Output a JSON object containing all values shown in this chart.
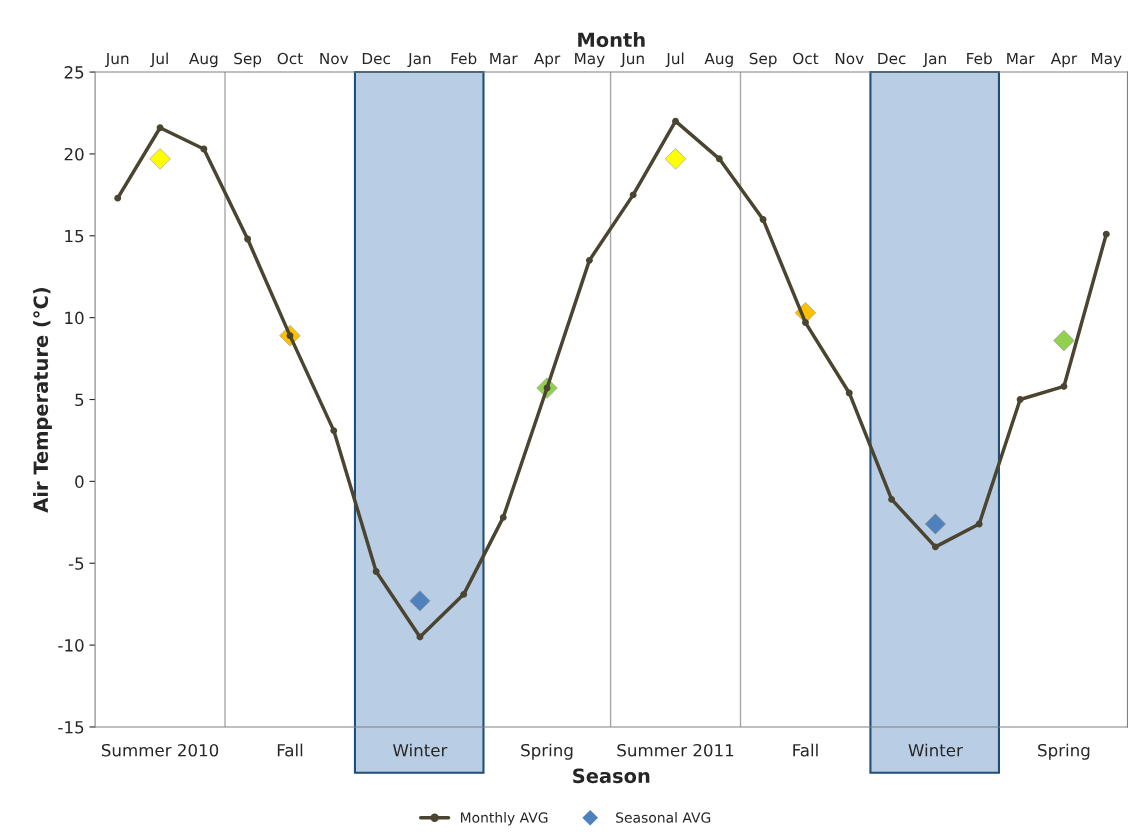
{
  "chart_data": {
    "type": "line",
    "xlabel": "Season",
    "x2label": "Month",
    "ylabel": "Air Temperature (°C)",
    "x": [
      "2010-06",
      "2010-07",
      "2010-08",
      "2010-09",
      "2010-10",
      "2010-11",
      "2010-12",
      "2011-01",
      "2011-02",
      "2011-03",
      "2011-04",
      "2011-05",
      "2011-06",
      "2011-07",
      "2011-08",
      "2011-09",
      "2011-10",
      "2011-11",
      "2011-12",
      "2012-01",
      "2012-02",
      "2012-03",
      "2012-04",
      "2012-05"
    ],
    "series": [
      {
        "name": "Monthly AVG",
        "color": "#4a4530",
        "marker": "circle",
        "line_style": "solid",
        "values": [
          17.3,
          21.6,
          20.3,
          14.8,
          8.9,
          3.1,
          -5.5,
          -9.5,
          -6.9,
          -2.2,
          5.7,
          13.5,
          17.5,
          22.0,
          19.7,
          16.0,
          9.7,
          5.4,
          -1.1,
          -4.0,
          -2.6,
          5.0,
          5.8,
          15.1
        ]
      },
      {
        "name": "Seasonal AVG",
        "type": "scatter",
        "marker": "diamond",
        "color": "#4f81bd",
        "x": [
          "2010-07",
          "2010-10",
          "2011-01",
          "2011-04",
          "2011-07",
          "2011-10",
          "2012-01",
          "2012-04"
        ],
        "colors": [
          "#ffff00",
          "#ffc000",
          "#4f81bd",
          "#92d050",
          "#ffff00",
          "#ffc000",
          "#4f81bd",
          "#92d050"
        ],
        "values": [
          19.7,
          8.9,
          -7.3,
          5.7,
          19.7,
          10.3,
          -2.6,
          8.6
        ]
      }
    ],
    "xlim": [
      "2010-05-16",
      "2012-05-16"
    ],
    "xticks": [
      {
        "value": "2010-07",
        "label": "Summer 2010"
      },
      {
        "value": "2010-10",
        "label": "Fall"
      },
      {
        "value": "2011-01",
        "label": "Winter"
      },
      {
        "value": "2011-04",
        "label": "Spring"
      },
      {
        "value": "2011-07",
        "label": "Summer 2011"
      },
      {
        "value": "2011-10",
        "label": "Fall"
      },
      {
        "value": "2012-01",
        "label": "Winter"
      },
      {
        "value": "2012-04",
        "label": "Spring"
      }
    ],
    "x2lim": [
      "2010-05-16",
      "2012-05-16"
    ],
    "x2ticks": [
      {
        "value": "2010-06",
        "label": "Jun"
      },
      {
        "value": "2010-07",
        "label": "Jul"
      },
      {
        "value": "2010-08",
        "label": "Aug"
      },
      {
        "value": "2010-09",
        "label": "Sep"
      },
      {
        "value": "2010-10",
        "label": "Oct"
      },
      {
        "value": "2010-11",
        "label": "Nov"
      },
      {
        "value": "2010-12",
        "label": "Dec"
      },
      {
        "value": "2011-01",
        "label": "Jan"
      },
      {
        "value": "2011-02",
        "label": "Feb"
      },
      {
        "value": "2011-03",
        "label": "Mar"
      },
      {
        "value": "2011-04",
        "label": "Apr"
      },
      {
        "value": "2011-05",
        "label": "May"
      },
      {
        "value": "2011-06",
        "label": "Jun"
      },
      {
        "value": "2011-07",
        "label": "Jul"
      },
      {
        "value": "2011-08",
        "label": "Aug"
      },
      {
        "value": "2011-09",
        "label": "Sep"
      },
      {
        "value": "2011-10",
        "label": "Oct"
      },
      {
        "value": "2011-11",
        "label": "Nov"
      },
      {
        "value": "2011-12",
        "label": "Dec"
      },
      {
        "value": "2012-01",
        "label": "Jan"
      },
      {
        "value": "2012-02",
        "label": "Feb"
      },
      {
        "value": "2012-03",
        "label": "Mar"
      },
      {
        "value": "2012-04",
        "label": "Apr"
      },
      {
        "value": "2012-05",
        "label": "May"
      }
    ],
    "ylim": [
      -15,
      25
    ],
    "yticks": [
      -15,
      -10,
      -5,
      0,
      5,
      10,
      15,
      20,
      25
    ],
    "grid": false,
    "legend": "bottom",
    "ref_lines": [
      {
        "axis": "x",
        "value": "2010-08-16",
        "color": "#a6a6a6"
      },
      {
        "axis": "x",
        "value": "2011-05-16",
        "color": "#a6a6a6"
      },
      {
        "axis": "x",
        "value": "2011-08-16",
        "color": "#a6a6a6"
      }
    ],
    "bands": [
      {
        "axis": "x",
        "from": "2010-11-16",
        "to": "2011-02-15",
        "color": "#b9cde5"
      },
      {
        "axis": "x",
        "from": "2011-11-16",
        "to": "2012-02-15",
        "color": "#b9cde5"
      }
    ]
  }
}
